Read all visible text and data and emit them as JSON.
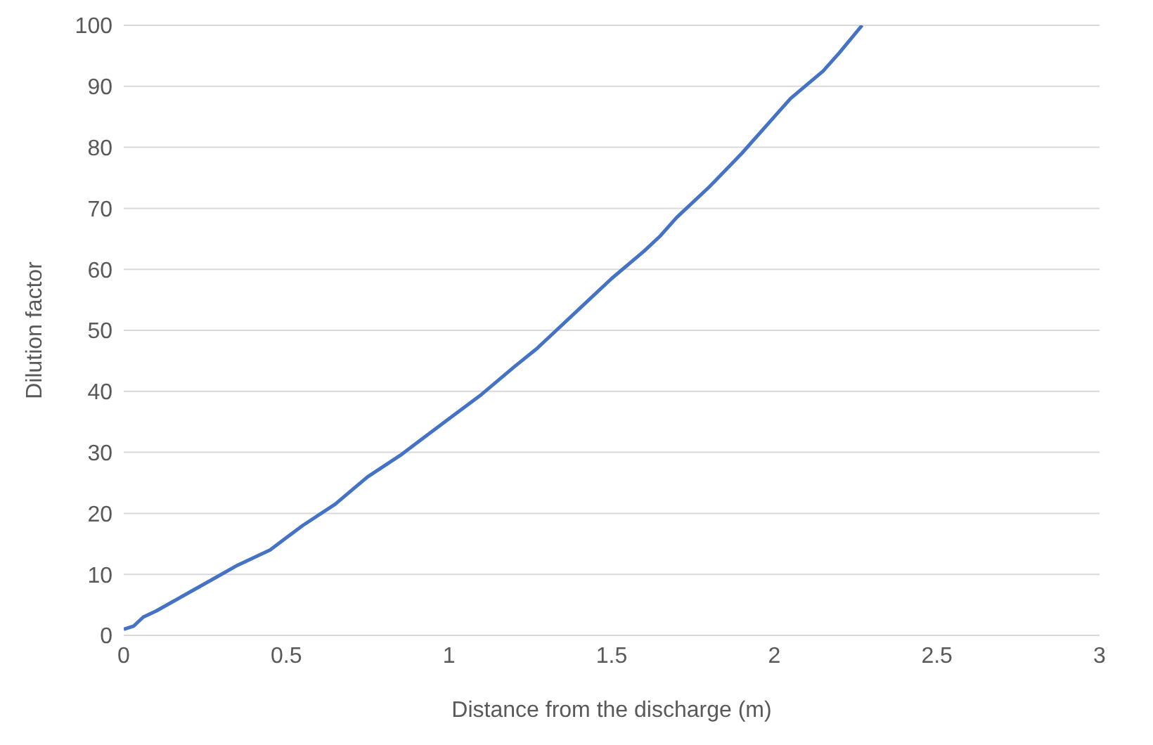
{
  "chart_data": {
    "type": "line",
    "xlabel": "Distance from the discharge (m)",
    "ylabel": "Dilution factor",
    "series": [
      {
        "color": "#4472c4",
        "x": [
          0,
          0.03,
          0.06,
          0.1,
          0.15,
          0.2,
          0.25,
          0.3,
          0.35,
          0.45,
          0.5,
          0.55,
          0.65,
          0.75,
          0.85,
          0.9,
          1.0,
          1.1,
          1.2,
          1.27,
          1.3,
          1.4,
          1.5,
          1.6,
          1.65,
          1.7,
          1.8,
          1.9,
          2.0,
          2.05,
          2.15,
          2.2,
          2.27
        ],
        "values": [
          1,
          1.5,
          3,
          4,
          5.5,
          7,
          8.5,
          10,
          11.5,
          14,
          16,
          18,
          21.5,
          26,
          29.5,
          31.5,
          35.5,
          39.5,
          44,
          47,
          48.5,
          53.5,
          58.5,
          63,
          65.5,
          68.5,
          73.5,
          79,
          85,
          88,
          92.5,
          95.5,
          100
        ]
      }
    ],
    "xlim": [
      0,
      3
    ],
    "xticks": [
      0,
      0.5,
      1,
      1.5,
      2,
      2.5,
      3
    ],
    "ylim": [
      0,
      100
    ],
    "yticks": [
      0,
      10,
      20,
      30,
      40,
      50,
      60,
      70,
      80,
      90,
      100
    ],
    "grid": "y",
    "legend": false,
    "marker": "none",
    "line_style": "solid"
  }
}
